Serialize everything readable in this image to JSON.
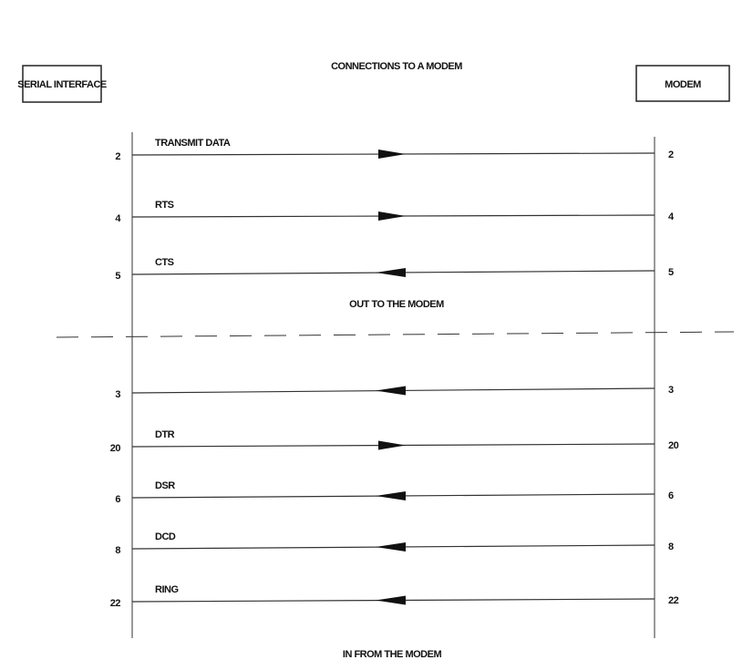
{
  "title": "CONNECTIONS TO A MODEM",
  "left_box": "SERIAL INTERFACE",
  "right_box": "MODEM",
  "out_label": "OUT TO THE MODEM",
  "in_label": "IN FROM THE MODEM",
  "signals": [
    {
      "left_pin": "2",
      "right_pin": "2",
      "label": "TRANSMIT DATA",
      "direction": "to-modem"
    },
    {
      "left_pin": "4",
      "right_pin": "4",
      "label": "RTS",
      "direction": "to-modem"
    },
    {
      "left_pin": "5",
      "right_pin": "5",
      "label": "CTS",
      "direction": "from-modem"
    },
    {
      "left_pin": "3",
      "right_pin": "3",
      "label": "",
      "direction": "from-modem"
    },
    {
      "left_pin": "20",
      "right_pin": "20",
      "label": "DTR",
      "direction": "to-modem"
    },
    {
      "left_pin": "6",
      "right_pin": "6",
      "label": "DSR",
      "direction": "from-modem"
    },
    {
      "left_pin": "8",
      "right_pin": "8",
      "label": "DCD",
      "direction": "from-modem"
    },
    {
      "left_pin": "22",
      "right_pin": "22",
      "label": "RING",
      "direction": "from-modem"
    }
  ]
}
